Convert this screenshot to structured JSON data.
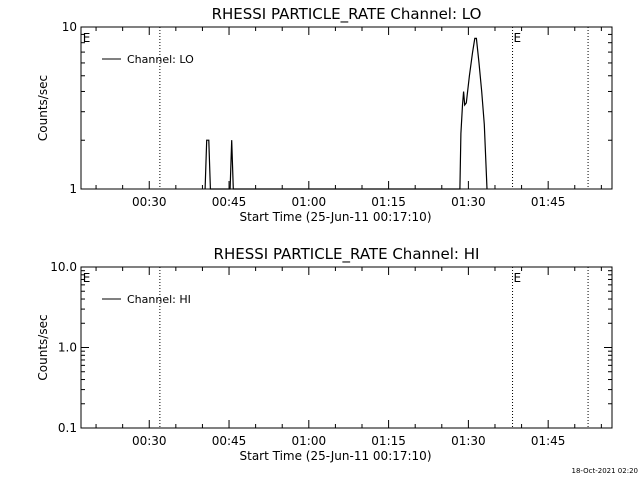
{
  "footer_timestamp": "18-Oct-2021 02:20",
  "chart_data": [
    {
      "type": "line",
      "title": "RHESSI PARTICLE_RATE Channel: LO",
      "xlabel": "Start Time (25-Jun-11 00:17:10)",
      "ylabel": "Counts/sec",
      "yscale": "log",
      "xlim_minutes": [
        17.17,
        117
      ],
      "ylim": [
        1,
        10
      ],
      "x_ticks": [
        {
          "minute": 30,
          "label": "00:30"
        },
        {
          "minute": 45,
          "label": "00:45"
        },
        {
          "minute": 60,
          "label": "01:00"
        },
        {
          "minute": 75,
          "label": "01:15"
        },
        {
          "minute": 90,
          "label": "01:30"
        },
        {
          "minute": 105,
          "label": "01:45"
        }
      ],
      "y_ticks": [
        {
          "value": 1,
          "label": "1"
        },
        {
          "value": 10,
          "label": "10"
        }
      ],
      "legend": {
        "label": "Channel: LO",
        "placement": "top-left"
      },
      "marker_lines_minutes": [
        32,
        98.3,
        112.5
      ],
      "event_labels": [
        {
          "minute": 17.3,
          "label": "E"
        },
        {
          "minute": 98.3,
          "label": "E"
        }
      ],
      "series": [
        {
          "name": "Channel: LO",
          "points": [
            [
              40.5,
              1
            ],
            [
              40.8,
              2
            ],
            [
              41.2,
              2
            ],
            [
              41.5,
              1
            ],
            [
              45.2,
              1
            ],
            [
              45.5,
              2
            ],
            [
              45.8,
              1
            ],
            [
              88.4,
              1
            ],
            [
              88.6,
              2.2
            ],
            [
              88.9,
              3.3
            ],
            [
              89.1,
              4
            ],
            [
              89.3,
              3.3
            ],
            [
              89.6,
              3.4
            ],
            [
              90.2,
              5
            ],
            [
              90.8,
              7
            ],
            [
              91.2,
              8.5
            ],
            [
              91.5,
              8.5
            ],
            [
              92.0,
              6
            ],
            [
              92.5,
              4
            ],
            [
              93.0,
              2.5
            ],
            [
              93.5,
              1
            ]
          ]
        }
      ]
    },
    {
      "type": "line",
      "title": "RHESSI PARTICLE_RATE Channel: HI",
      "xlabel": "Start Time (25-Jun-11 00:17:10)",
      "ylabel": "Counts/sec",
      "yscale": "log",
      "xlim_minutes": [
        17.17,
        117
      ],
      "ylim": [
        0.1,
        10
      ],
      "x_ticks": [
        {
          "minute": 30,
          "label": "00:30"
        },
        {
          "minute": 45,
          "label": "00:45"
        },
        {
          "minute": 60,
          "label": "01:00"
        },
        {
          "minute": 75,
          "label": "01:15"
        },
        {
          "minute": 90,
          "label": "01:30"
        },
        {
          "minute": 105,
          "label": "01:45"
        }
      ],
      "y_ticks": [
        {
          "value": 0.1,
          "label": "0.1"
        },
        {
          "value": 1,
          "label": "1.0"
        },
        {
          "value": 10,
          "label": "10.0"
        }
      ],
      "legend": {
        "label": "Channel: HI",
        "placement": "top-left"
      },
      "marker_lines_minutes": [
        32,
        98.3,
        112.5
      ],
      "event_labels": [
        {
          "minute": 17.3,
          "label": "E"
        },
        {
          "minute": 98.3,
          "label": "E"
        }
      ],
      "series": [
        {
          "name": "Channel: HI",
          "points": []
        }
      ]
    }
  ]
}
